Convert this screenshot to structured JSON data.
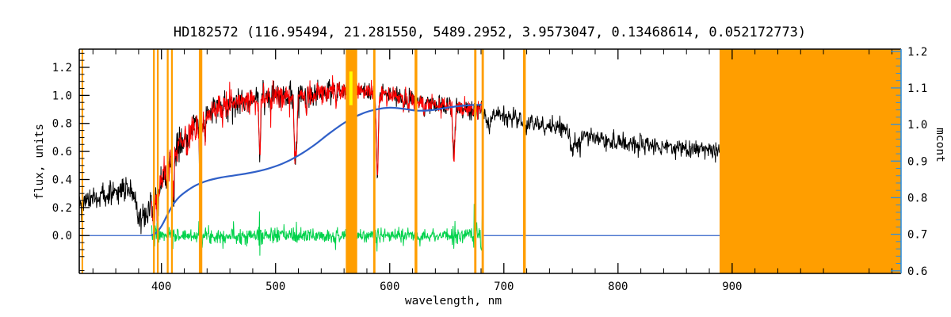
{
  "chart_data": {
    "type": "line",
    "title": "HD182572    (116.95494, 21.281550, 5489.2952, 3.9573047, 0.13468614, 0.052172773)",
    "xlabel": "wavelength, nm",
    "ylabel_left": "flux, units",
    "ylabel_right": "mcont",
    "x_range": [
      328,
      1048
    ],
    "x_ticks": [
      400,
      500,
      600,
      700,
      800,
      900
    ],
    "x_minor_step": 20,
    "y_left_range": [
      -0.27,
      1.33
    ],
    "y_left_ticks": [
      0.0,
      0.2,
      0.4,
      0.6,
      0.8,
      1.0,
      1.2
    ],
    "y_right_range": [
      0.593,
      1.206
    ],
    "y_right_ticks": [
      0.6,
      0.7,
      0.8,
      0.9,
      1.0,
      1.1,
      1.2
    ],
    "grid": false,
    "colors": {
      "observed": "#000000",
      "fit": "#ff0000",
      "residual": "#00d24b",
      "continuum": "#3060c8",
      "right_axis": "#2f90e0",
      "mask": "#ff9e00",
      "marker": "#ffff00",
      "frame": "#000000"
    },
    "series": [
      {
        "name": "observed spectrum",
        "color_key": "observed",
        "range_nm": [
          328,
          890
        ],
        "axis": "left"
      },
      {
        "name": "fitted spectrum",
        "color_key": "fit",
        "range_nm": [
          391.5,
          682
        ],
        "axis": "left"
      },
      {
        "name": "residual (obs-fit)",
        "color_key": "residual",
        "range_nm": [
          391.5,
          682
        ],
        "axis": "left",
        "mean": 0.0
      },
      {
        "name": "continuum mcont",
        "color_key": "continuum",
        "range_nm": [
          391,
          682
        ],
        "axis": "right"
      }
    ],
    "flux_envelope": [
      [
        328,
        0.255
      ],
      [
        342,
        0.28
      ],
      [
        355,
        0.3
      ],
      [
        365,
        0.32
      ],
      [
        372,
        0.33
      ],
      [
        376,
        0.29
      ],
      [
        380,
        0.155
      ],
      [
        383,
        0.125
      ],
      [
        386,
        0.14
      ],
      [
        389,
        0.19
      ],
      [
        392,
        0.26
      ],
      [
        395,
        0.32
      ],
      [
        398,
        0.375
      ],
      [
        402,
        0.44
      ],
      [
        406,
        0.5
      ],
      [
        410,
        0.565
      ],
      [
        415,
        0.635
      ],
      [
        420,
        0.7
      ],
      [
        426,
        0.75
      ],
      [
        432,
        0.79
      ],
      [
        438,
        0.84
      ],
      [
        444,
        0.885
      ],
      [
        450,
        0.92
      ],
      [
        458,
        0.94
      ],
      [
        466,
        0.955
      ],
      [
        474,
        0.962
      ],
      [
        482,
        0.972
      ],
      [
        490,
        0.985
      ],
      [
        500,
        1.0
      ],
      [
        510,
        1.002
      ],
      [
        520,
        1.006
      ],
      [
        530,
        1.016
      ],
      [
        540,
        1.026
      ],
      [
        550,
        1.036
      ],
      [
        558,
        1.04
      ],
      [
        566,
        1.036
      ],
      [
        574,
        1.03
      ],
      [
        582,
        1.02
      ],
      [
        590,
        1.006
      ],
      [
        598,
        1.0
      ],
      [
        606,
        0.995
      ],
      [
        614,
        0.985
      ],
      [
        622,
        0.97
      ],
      [
        630,
        0.955
      ],
      [
        638,
        0.94
      ],
      [
        646,
        0.928
      ],
      [
        654,
        0.92
      ],
      [
        662,
        0.912
      ],
      [
        670,
        0.905
      ],
      [
        680,
        0.89
      ],
      [
        690,
        0.872
      ],
      [
        700,
        0.855
      ],
      [
        712,
        0.835
      ],
      [
        724,
        0.812
      ],
      [
        736,
        0.788
      ],
      [
        748,
        0.765
      ],
      [
        760,
        0.74
      ],
      [
        772,
        0.715
      ],
      [
        784,
        0.692
      ],
      [
        796,
        0.672
      ],
      [
        808,
        0.656
      ],
      [
        820,
        0.648
      ],
      [
        835,
        0.638
      ],
      [
        850,
        0.628
      ],
      [
        865,
        0.62
      ],
      [
        878,
        0.614
      ],
      [
        890,
        0.61
      ]
    ],
    "absorption_lines": [
      [
        393.4,
        0.22,
        0.9
      ],
      [
        396.8,
        0.2,
        0.9
      ],
      [
        404.6,
        0.1,
        0.5
      ],
      [
        410.2,
        0.25,
        0.8
      ],
      [
        422.7,
        0.14,
        0.6
      ],
      [
        434.0,
        0.34,
        0.8
      ],
      [
        438.3,
        0.1,
        0.5
      ],
      [
        486.1,
        0.42,
        0.7
      ],
      [
        495.7,
        0.08,
        0.5
      ],
      [
        516.7,
        0.22,
        0.6
      ],
      [
        517.3,
        0.28,
        0.7
      ],
      [
        518.4,
        0.28,
        0.7
      ],
      [
        527.0,
        0.15,
        0.5
      ],
      [
        532.8,
        0.08,
        0.5
      ],
      [
        552.8,
        0.08,
        0.5
      ],
      [
        588.9,
        0.4,
        0.8
      ],
      [
        589.6,
        0.28,
        0.6
      ],
      [
        612.2,
        0.08,
        0.5
      ],
      [
        616.2,
        0.08,
        0.5
      ],
      [
        630.2,
        0.08,
        0.5
      ],
      [
        656.3,
        0.36,
        0.9
      ],
      [
        686.8,
        0.12,
        1.6
      ],
      [
        718.5,
        0.07,
        2.0
      ],
      [
        760.5,
        0.12,
        2.2
      ],
      [
        766.8,
        0.08,
        0.8
      ]
    ],
    "mcont_curve": [
      [
        391,
        0.697
      ],
      [
        395,
        0.703
      ],
      [
        400,
        0.722
      ],
      [
        405,
        0.752
      ],
      [
        410,
        0.78
      ],
      [
        416,
        0.803
      ],
      [
        423,
        0.82
      ],
      [
        431,
        0.835
      ],
      [
        441,
        0.847
      ],
      [
        452,
        0.855
      ],
      [
        464,
        0.861
      ],
      [
        478,
        0.868
      ],
      [
        492,
        0.878
      ],
      [
        506,
        0.893
      ],
      [
        520,
        0.915
      ],
      [
        534,
        0.944
      ],
      [
        548,
        0.978
      ],
      [
        562,
        1.008
      ],
      [
        576,
        1.03
      ],
      [
        588,
        1.041
      ],
      [
        600,
        1.046
      ],
      [
        612,
        1.043
      ],
      [
        624,
        1.038
      ],
      [
        636,
        1.039
      ],
      [
        648,
        1.045
      ],
      [
        660,
        1.05
      ],
      [
        671,
        1.053
      ],
      [
        682,
        1.054
      ]
    ],
    "flat_zero_segments": [
      [
        328,
        391
      ],
      [
        682,
        889
      ]
    ],
    "masked_bands": [
      [
        330.7,
        1.4
      ],
      [
        393.4,
        1.6
      ],
      [
        396.8,
        1.6
      ],
      [
        405.5,
        1.6
      ],
      [
        409.2,
        1.6
      ],
      [
        434.3,
        3.0
      ],
      [
        566.5,
        10.0
      ],
      [
        586.5,
        2.0
      ],
      [
        623.0,
        2.4
      ],
      [
        675.0,
        2.0
      ],
      [
        681.5,
        2.0
      ],
      [
        718.0,
        2.4
      ]
    ],
    "masked_block": [
      889,
      1048
    ],
    "marker": {
      "x": 566.0,
      "flux_from": 0.93,
      "flux_to": 1.17
    },
    "noise": {
      "seed_observed": 42,
      "seed_fit": 1337,
      "seed_residual": 7,
      "fit_amp_scale": 0.85,
      "amp_profile": [
        [
          328,
          0.048
        ],
        [
          370,
          0.05
        ],
        [
          390,
          0.055
        ],
        [
          410,
          0.06
        ],
        [
          440,
          0.055
        ],
        [
          470,
          0.048
        ],
        [
          500,
          0.042
        ],
        [
          530,
          0.038
        ],
        [
          560,
          0.036
        ],
        [
          600,
          0.034
        ],
        [
          650,
          0.032
        ],
        [
          700,
          0.03
        ],
        [
          760,
          0.03
        ],
        [
          820,
          0.028
        ],
        [
          890,
          0.028
        ]
      ],
      "spike_prob": 0.055,
      "spike_region": [
        395,
        545
      ],
      "spike_amp_in_region": 0.14,
      "spike_amp_out_region": 0.07,
      "residual_sigma": [
        [
          392,
          0.015
        ],
        [
          405,
          0.018
        ],
        [
          420,
          0.025
        ],
        [
          435,
          0.028
        ],
        [
          450,
          0.03
        ],
        [
          470,
          0.03
        ],
        [
          490,
          0.028
        ],
        [
          510,
          0.026
        ],
        [
          530,
          0.024
        ],
        [
          560,
          0.022
        ],
        [
          590,
          0.022
        ],
        [
          620,
          0.02
        ],
        [
          650,
          0.022
        ],
        [
          670,
          0.026
        ],
        [
          682,
          0.028
        ]
      ],
      "residual_spikes": [
        [
          393.4,
          2.5,
          1.2
        ],
        [
          396.8,
          2.2,
          1.2
        ],
        [
          410.2,
          2.0,
          1.0
        ],
        [
          434.0,
          2.2,
          1.0
        ],
        [
          486.1,
          2.0,
          0.8
        ],
        [
          517.3,
          2.2,
          1.0
        ],
        [
          552.0,
          1.8,
          0.8
        ],
        [
          566.0,
          2.5,
          1.5
        ],
        [
          589.0,
          2.2,
          0.8
        ],
        [
          611.0,
          1.6,
          0.8
        ],
        [
          656.3,
          2.2,
          0.8
        ],
        [
          675.0,
          2.8,
          1.5
        ],
        [
          681.0,
          2.5,
          1.2
        ]
      ]
    }
  }
}
